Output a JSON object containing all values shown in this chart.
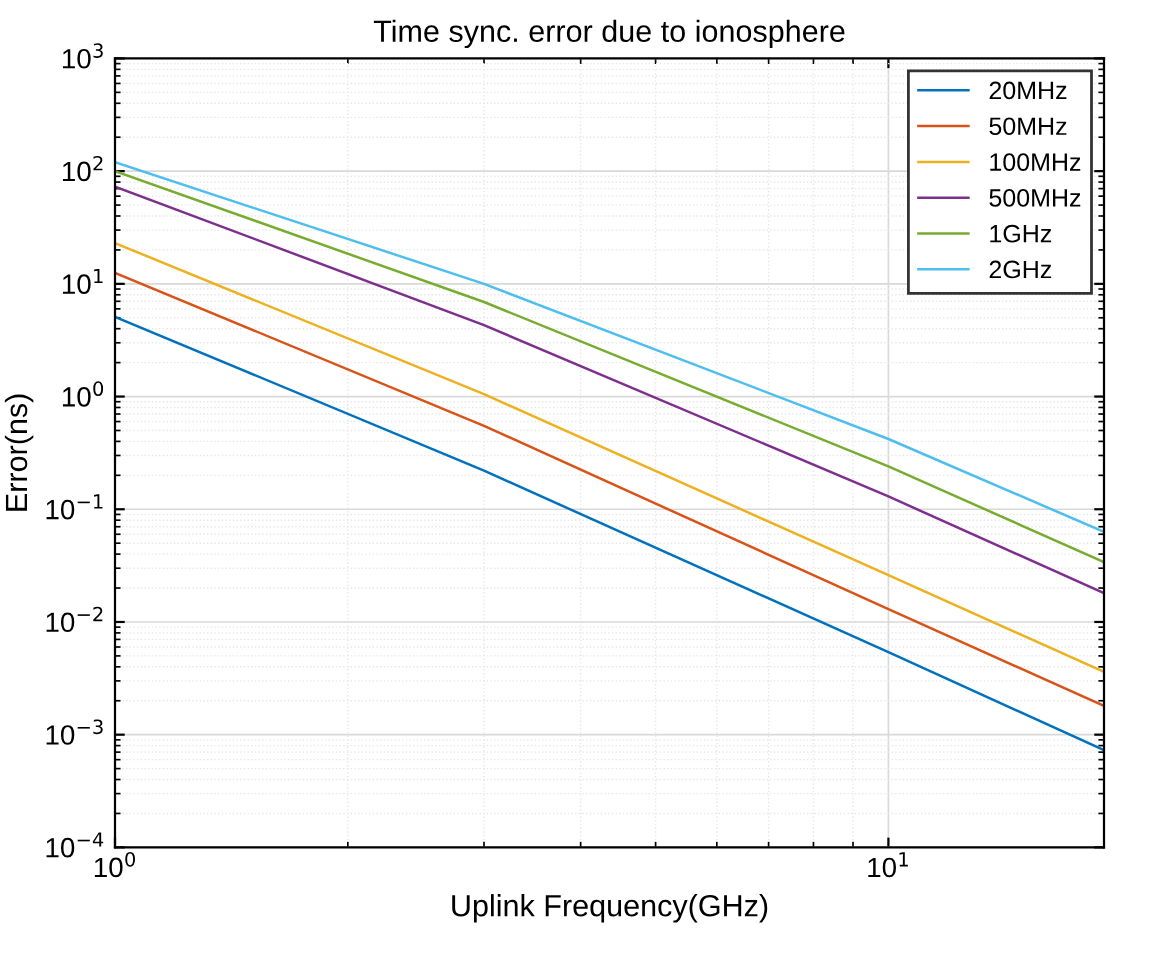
{
  "chart_data": {
    "type": "line",
    "title": "Time sync. error due to ionosphere",
    "xlabel": "Uplink Frequency(GHz)",
    "ylabel": "Error(ns)",
    "log": "xy",
    "grid": true,
    "legend": "top right",
    "marker": "none",
    "line_style": "solid",
    "x": [
      1,
      3,
      10,
      19
    ],
    "xlim": [
      1,
      19
    ],
    "xticks": [
      {
        "value": 1,
        "label": "10$^{0}$"
      },
      {
        "value": 10,
        "label": "10$^{1}$"
      }
    ],
    "ylim": [
      0.0001,
      1000
    ],
    "yticks": [
      {
        "value": 0.0001,
        "label": "10$^{−4}$"
      },
      {
        "value": 0.001,
        "label": "10$^{−3}$"
      },
      {
        "value": 0.01,
        "label": "10$^{−2}$"
      },
      {
        "value": 0.1,
        "label": "10$^{−1}$"
      },
      {
        "value": 1,
        "label": "10$^{0}$"
      },
      {
        "value": 10,
        "label": "10$^{1}$"
      },
      {
        "value": 100,
        "label": "10$^{2}$"
      },
      {
        "value": 1000,
        "label": "10$^{3}$"
      }
    ],
    "series": [
      {
        "name": "20MHz",
        "color": "#0072bd",
        "values": [
          5.1,
          0.22,
          0.0054,
          0.00073
        ]
      },
      {
        "name": "50MHz",
        "color": "#d95319",
        "values": [
          12.5,
          0.55,
          0.013,
          0.0018
        ]
      },
      {
        "name": "100MHz",
        "color": "#edb120",
        "values": [
          23,
          1.05,
          0.026,
          0.0036
        ]
      },
      {
        "name": "500MHz",
        "color": "#7e2f8e",
        "values": [
          73,
          4.3,
          0.13,
          0.018
        ]
      },
      {
        "name": "1GHz",
        "color": "#77ac30",
        "values": [
          100,
          6.9,
          0.24,
          0.034
        ]
      },
      {
        "name": "2GHz",
        "color": "#4dbeee",
        "values": [
          120,
          10,
          0.42,
          0.063
        ]
      }
    ]
  }
}
